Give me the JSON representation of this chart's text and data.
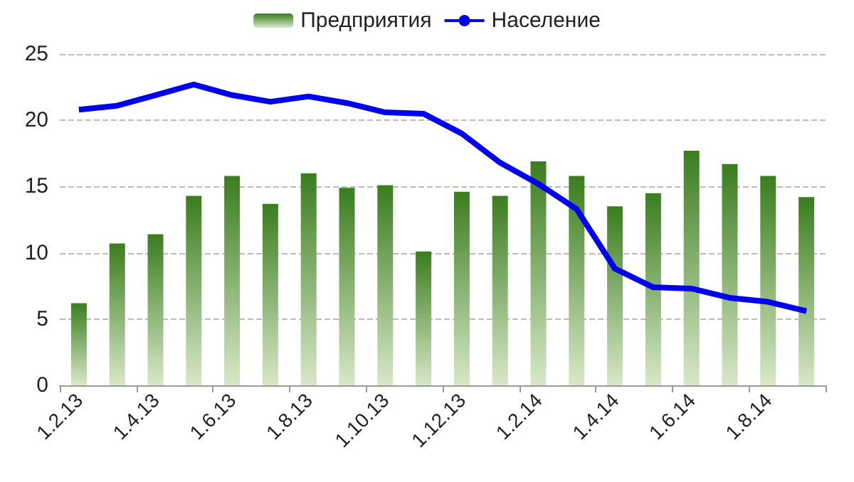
{
  "chart_data": {
    "type": "bar",
    "categories": [
      "1.2.13",
      null,
      "1.4.13",
      null,
      "1.6.13",
      null,
      "1.8.13",
      null,
      "1.10.13",
      null,
      "1.12.13",
      null,
      "1.2.14",
      null,
      "1.4.14",
      null,
      "1.6.14",
      null,
      "1.8.14",
      null
    ],
    "series": [
      {
        "name": "Предприятия",
        "color": "#3a7d1e",
        "values": [
          6.2,
          10.7,
          11.4,
          14.3,
          15.8,
          13.7,
          16.0,
          14.9,
          15.1,
          10.1,
          14.6,
          14.3,
          16.9,
          15.8,
          13.5,
          14.5,
          17.7,
          16.7,
          15.8,
          14.2
        ]
      },
      {
        "name": "Население",
        "type": "line",
        "color": "#0000ee",
        "values": [
          20.8,
          21.1,
          21.9,
          22.7,
          21.9,
          21.4,
          21.8,
          21.3,
          20.6,
          20.5,
          19.0,
          16.8,
          15.2,
          13.3,
          8.8,
          7.4,
          7.3,
          6.6,
          6.3,
          5.6
        ]
      }
    ],
    "ylim": [
      0,
      25
    ],
    "yticks": [
      0,
      5,
      10,
      15,
      20,
      25
    ],
    "grid": "y",
    "legend": "top",
    "marker": "none",
    "line_style": "solid"
  }
}
